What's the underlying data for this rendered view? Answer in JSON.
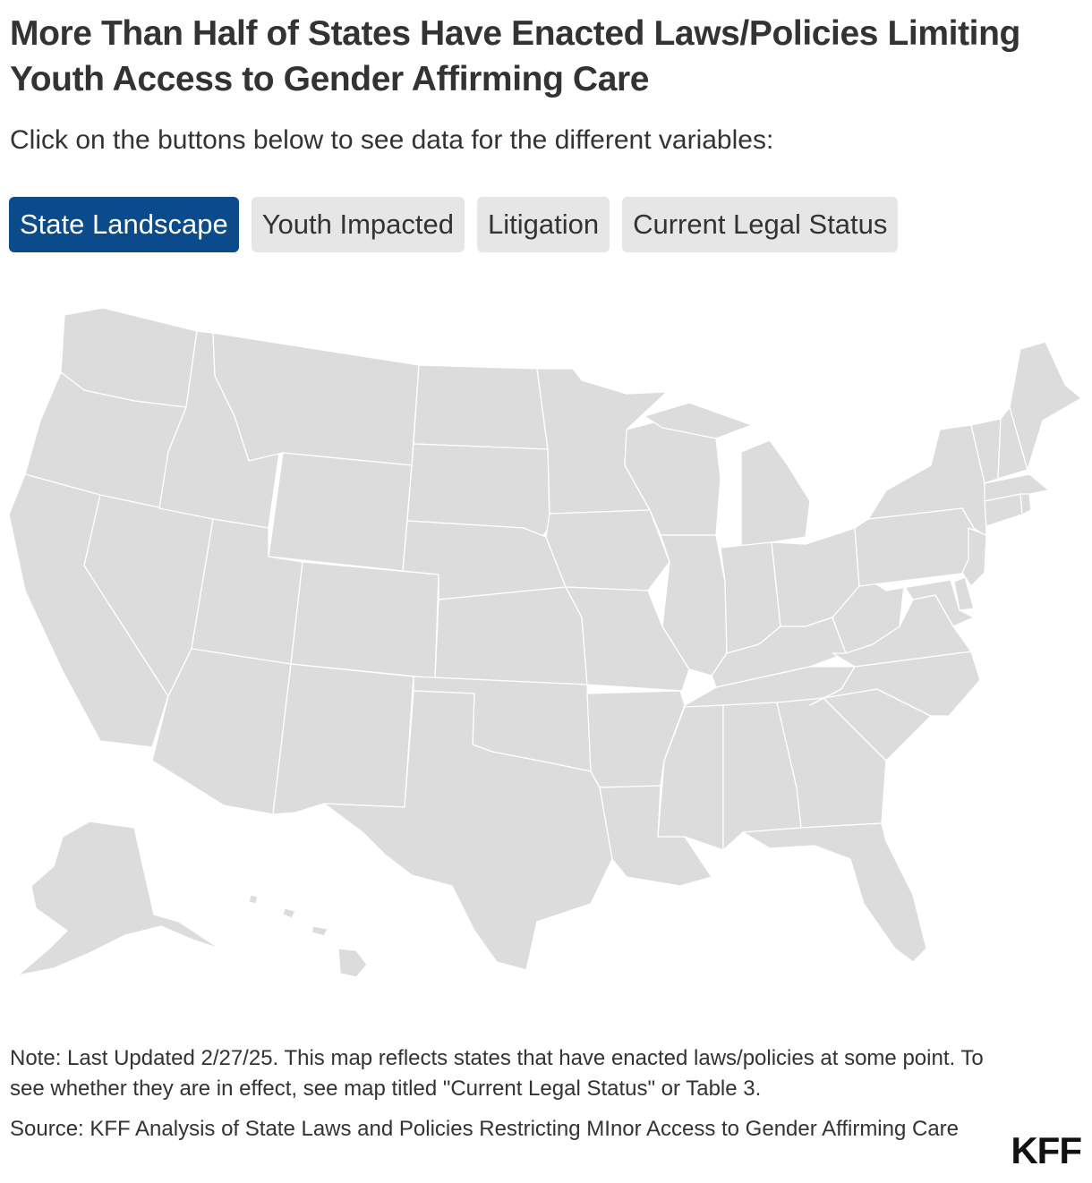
{
  "title": "More Than Half of States Have Enacted Laws/Policies Limiting Youth Access to Gender Affirming Care",
  "subtitle": "Click on the buttons below to see data for the different variables:",
  "tabs": [
    {
      "label": "State Landscape",
      "active": true
    },
    {
      "label": "Youth Impacted",
      "active": false
    },
    {
      "label": "Litigation",
      "active": false
    },
    {
      "label": "Current Legal Status",
      "active": false
    }
  ],
  "colors": {
    "state_fill": "#dcdcdc",
    "state_border": "#ffffff",
    "active_tab": "#0b4a8b",
    "inactive_tab": "#e6e6e6"
  },
  "map": {
    "region": "United States (states, with Alaska and Hawaii inset)",
    "state_codes": [
      "WA",
      "OR",
      "CA",
      "NV",
      "ID",
      "MT",
      "WY",
      "UT",
      "AZ",
      "CO",
      "NM",
      "ND",
      "SD",
      "NE",
      "KS",
      "OK",
      "TX",
      "MN",
      "IA",
      "MO",
      "AR",
      "LA",
      "WI",
      "IL",
      "MI",
      "IN",
      "OH",
      "KY",
      "TN",
      "MS",
      "AL",
      "GA",
      "FL",
      "SC",
      "NC",
      "VA",
      "WV",
      "PA",
      "NY",
      "VT",
      "NH",
      "ME",
      "MA",
      "RI",
      "CT",
      "NJ",
      "DE",
      "MD",
      "AK",
      "HI"
    ]
  },
  "note": "Note: Last Updated 2/27/25. This map reflects states that have enacted laws/policies at some point. To see whether they are in effect, see map titled \"Current Legal Status\" or Table 3.",
  "source": "Source: KFF Analysis of State Laws and Policies Restricting MInor Access to Gender Affirming Care",
  "logo": "KFF"
}
